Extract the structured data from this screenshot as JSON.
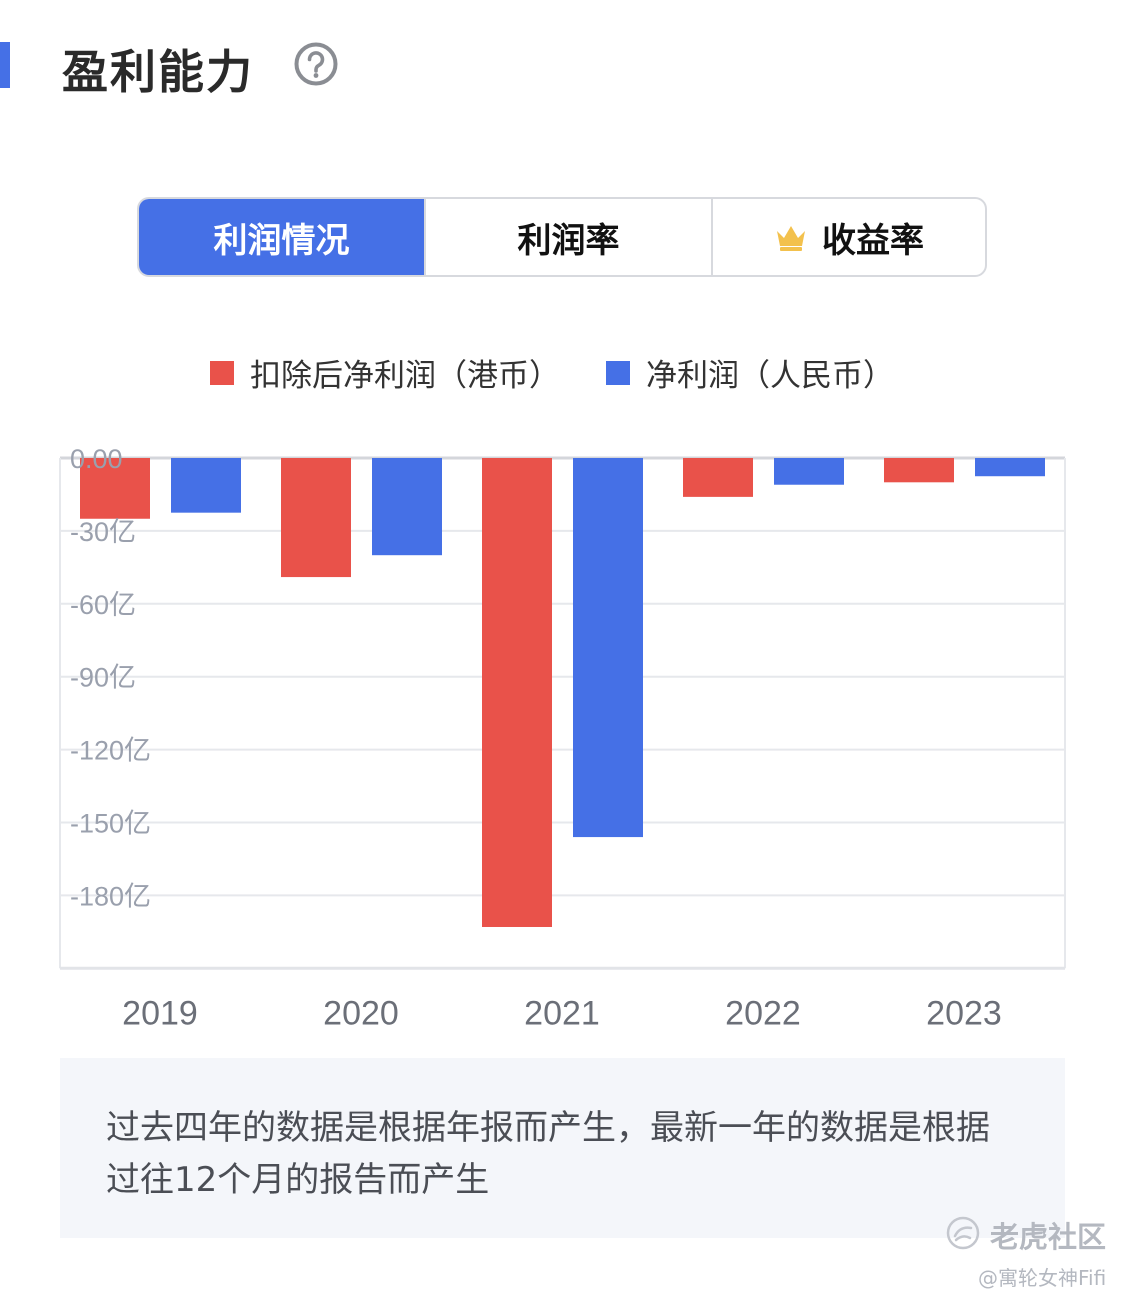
{
  "header": {
    "title": "盈利能力",
    "help_icon": "help-circle-icon"
  },
  "colors": {
    "accent": "#4570e6",
    "net_profit_hkd": "#e9524a",
    "net_profit_rmb": "#4570e6"
  },
  "tabs": [
    {
      "label": "利润情况",
      "active": true
    },
    {
      "label": "利润率",
      "active": false
    },
    {
      "label": "收益率",
      "active": false,
      "icon": "crown-icon"
    }
  ],
  "legend": [
    {
      "label": "扣除后净利润（港币）",
      "color": "#e9524a"
    },
    {
      "label": "净利润（人民币）",
      "color": "#4570e6"
    }
  ],
  "chart_data": {
    "type": "bar",
    "categories": [
      "2019",
      "2020",
      "2021",
      "2022",
      "2023"
    ],
    "series": [
      {
        "name": "扣除后净利润（港币）",
        "values": [
          -25,
          -49,
          -193,
          -16,
          -10
        ],
        "color": "#e9524a"
      },
      {
        "name": "净利润（人民币）",
        "values": [
          -22.5,
          -40,
          -156,
          -11,
          -7.5
        ],
        "color": "#4570e6"
      }
    ],
    "y_ticks": [
      {
        "value": 0,
        "label": "0.00"
      },
      {
        "value": -30,
        "label": "-30亿"
      },
      {
        "value": -60,
        "label": "-60亿"
      },
      {
        "value": -90,
        "label": "-90亿"
      },
      {
        "value": -120,
        "label": "-120亿"
      },
      {
        "value": -150,
        "label": "-150亿"
      },
      {
        "value": -180,
        "label": "-180亿"
      }
    ],
    "ylim": [
      -210,
      0
    ],
    "grid": true
  },
  "note": {
    "text": "过去四年的数据是根据年报而产生，最新一年的数据是根据过往12个月的报告而产生"
  },
  "watermark": {
    "name": "老虎社区",
    "user": "@寓轮女神Fifi"
  }
}
